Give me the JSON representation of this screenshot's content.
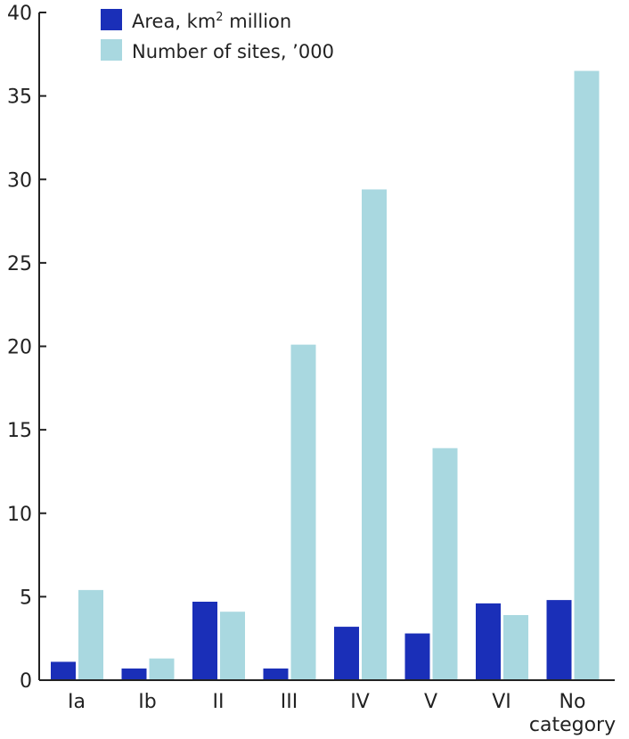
{
  "chart_data": {
    "type": "bar",
    "categories": [
      "Ia",
      "Ib",
      "II",
      "III",
      "IV",
      "V",
      "VI",
      "No category"
    ],
    "category_lines": [
      [
        "Ia"
      ],
      [
        "Ib"
      ],
      [
        "II"
      ],
      [
        "III"
      ],
      [
        "IV"
      ],
      [
        "V"
      ],
      [
        "VI"
      ],
      [
        "No",
        "category"
      ]
    ],
    "series": [
      {
        "name": "Area, km² million",
        "color": "#1a2fb8",
        "values": [
          1.1,
          0.7,
          4.7,
          0.7,
          3.2,
          2.8,
          4.6,
          4.8
        ]
      },
      {
        "name": "Number of sites, ’000",
        "color": "#a9d8e0",
        "values": [
          5.4,
          1.3,
          4.1,
          20.1,
          29.4,
          13.9,
          3.9,
          36.5
        ]
      }
    ],
    "legend": {
      "area_label": "Area, km",
      "area_superscript": "2",
      "area_label_suffix": " million",
      "sites_label": "Number of sites, ’000",
      "placement": "top-left"
    },
    "yticks": [
      "0",
      "5",
      "10",
      "15",
      "20",
      "25",
      "30",
      "35",
      "40"
    ],
    "ylim": [
      0,
      40
    ],
    "title": "",
    "xlabel": "",
    "ylabel": "",
    "grid": false
  }
}
